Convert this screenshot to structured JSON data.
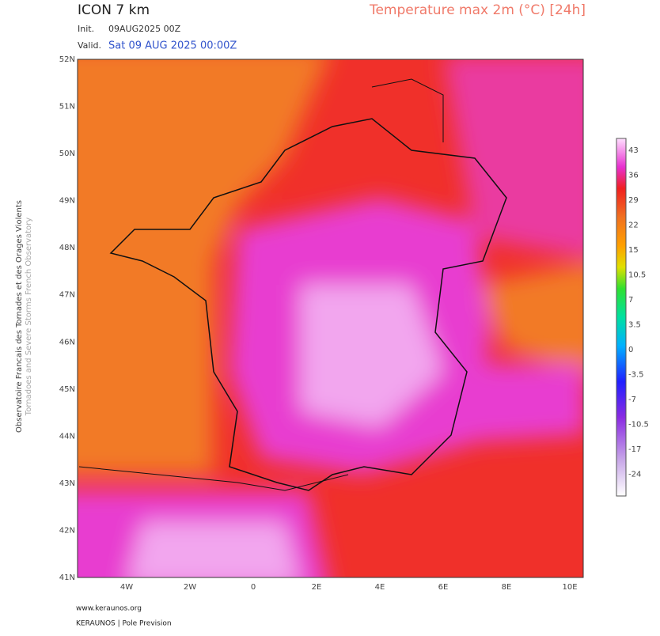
{
  "header": {
    "model": "ICON 7 km",
    "title": "Temperature max 2m (°C) [24h]",
    "init_label": "Init.",
    "init": "09AUG2025 00Z",
    "valid_label": "Valid.",
    "valid": "Sat 09 AUG 2025 00:00Z"
  },
  "map": {
    "lat_labels": [
      "52N",
      "51N",
      "50N",
      "49N",
      "48N",
      "47N",
      "46N",
      "45N",
      "44N",
      "43N",
      "42N",
      "41N"
    ],
    "lon_labels": [
      "4W",
      "2W",
      "0",
      "2E",
      "4E",
      "6E",
      "8E",
      "10E"
    ]
  },
  "colorbar": {
    "labels": [
      "43",
      "36",
      "29",
      "22",
      "15",
      "10.5",
      "7",
      "3.5",
      "0",
      "-3.5",
      "-7",
      "-10.5",
      "-17",
      "-24"
    ]
  },
  "side_text": {
    "line1": "Observatoire Francais des Tornades et des Orages Violents",
    "line2": "Tornadoes and Severe Storms French Observatory"
  },
  "footer": {
    "site": "www.keraunos.org",
    "org": "KERAUNOS | Pole Prevision"
  }
}
